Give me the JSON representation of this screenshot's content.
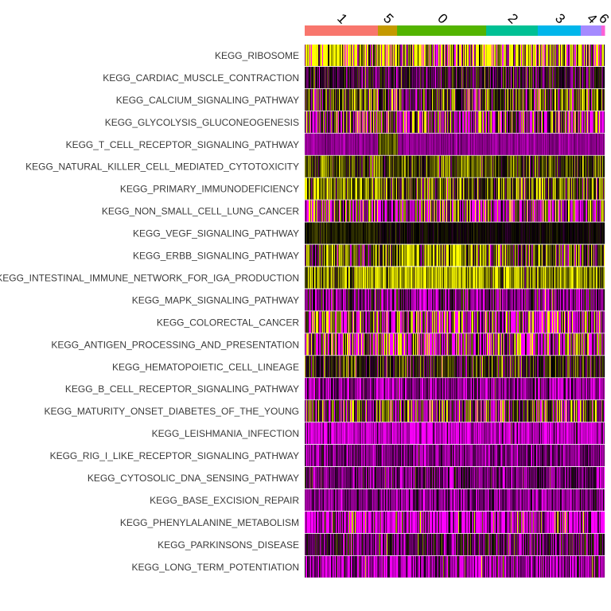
{
  "chart_data": {
    "type": "heatmap",
    "title": "",
    "xlabel": "",
    "ylabel": "",
    "colorscale": [
      "#ff00ff",
      "#000000",
      "#ffff00"
    ],
    "clusters": [
      {
        "name": "1",
        "color": "#f8766d",
        "width_fraction": 0.244
      },
      {
        "name": "5",
        "color": "#c49a00",
        "width_fraction": 0.064
      },
      {
        "name": "0",
        "color": "#53b400",
        "width_fraction": 0.297
      },
      {
        "name": "2",
        "color": "#00c094",
        "width_fraction": 0.172
      },
      {
        "name": "3",
        "color": "#00b6eb",
        "width_fraction": 0.143
      },
      {
        "name": "4",
        "color": "#a58aff",
        "width_fraction": 0.069
      },
      {
        "name": "6",
        "color": "#fb61d7",
        "width_fraction": 0.011
      }
    ],
    "rows": [
      {
        "name": "KEGG_RIBOSOME",
        "mean": 0.55,
        "spread": 1.2
      },
      {
        "name": "KEGG_CARDIAC_MUSCLE_CONTRACTION",
        "mean": -0.15,
        "spread": 0.35
      },
      {
        "name": "KEGG_CALCIUM_SIGNALING_PATHWAY",
        "mean": 0.15,
        "spread": 0.55
      },
      {
        "name": "KEGG_GLYCOLYSIS_GLUCONEOGENESIS",
        "mean": -0.1,
        "spread": 1.1
      },
      {
        "name": "KEGG_T_CELL_RECEPTOR_SIGNALING_PATHWAY",
        "mean": -0.55,
        "spread": 0.12
      },
      {
        "name": "KEGG_NATURAL_KILLER_CELL_MEDIATED_CYTOTOXICITY",
        "mean": 0.25,
        "spread": 0.3
      },
      {
        "name": "KEGG_PRIMARY_IMMUNODEFICIENCY",
        "mean": 0.3,
        "spread": 0.5
      },
      {
        "name": "KEGG_NON_SMALL_CELL_LUNG_CANCER",
        "mean": -0.3,
        "spread": 1.0
      },
      {
        "name": "KEGG_VEGF_SIGNALING_PATHWAY",
        "mean": 0.0,
        "spread": 0.1
      },
      {
        "name": "KEGG_ERBB_SIGNALING_PATHWAY",
        "mean": 0.25,
        "spread": 0.6
      },
      {
        "name": "KEGG_INTESTINAL_IMMUNE_NETWORK_FOR_IGA_PRODUCTION",
        "mean": 0.55,
        "spread": 0.35
      },
      {
        "name": "KEGG_MAPK_SIGNALING_PATHWAY",
        "mean": -0.4,
        "spread": 0.45
      },
      {
        "name": "KEGG_COLORECTAL_CANCER",
        "mean": -0.35,
        "spread": 1.2
      },
      {
        "name": "KEGG_ANTIGEN_PROCESSING_AND_PRESENTATION",
        "mean": -0.2,
        "spread": 1.0
      },
      {
        "name": "KEGG_HEMATOPOIETIC_CELL_LINEAGE",
        "mean": 0.05,
        "spread": 0.4
      },
      {
        "name": "KEGG_B_CELL_RECEPTOR_SIGNALING_PATHWAY",
        "mean": -0.55,
        "spread": 0.35
      },
      {
        "name": "KEGG_MATURITY_ONSET_DIABETES_OF_THE_YOUNG",
        "mean": 0.0,
        "spread": 0.75
      },
      {
        "name": "KEGG_LEISHMANIA_INFECTION",
        "mean": -0.75,
        "spread": 0.3
      },
      {
        "name": "KEGG_RIG_I_LIKE_RECEPTOR_SIGNALING_PATHWAY",
        "mean": -0.5,
        "spread": 0.25
      },
      {
        "name": "KEGG_CYTOSOLIC_DNA_SENSING_PATHWAY",
        "mean": -0.4,
        "spread": 0.3
      },
      {
        "name": "KEGG_BASE_EXCISION_REPAIR",
        "mean": -0.5,
        "spread": 0.25
      },
      {
        "name": "KEGG_PHENYLALANINE_METABOLISM",
        "mean": -0.85,
        "spread": 0.9
      },
      {
        "name": "KEGG_PARKINSONS_DISEASE",
        "mean": -0.3,
        "spread": 0.4
      },
      {
        "name": "KEGG_LONG_TERM_POTENTIATION",
        "mean": -0.6,
        "spread": 0.45
      }
    ]
  }
}
